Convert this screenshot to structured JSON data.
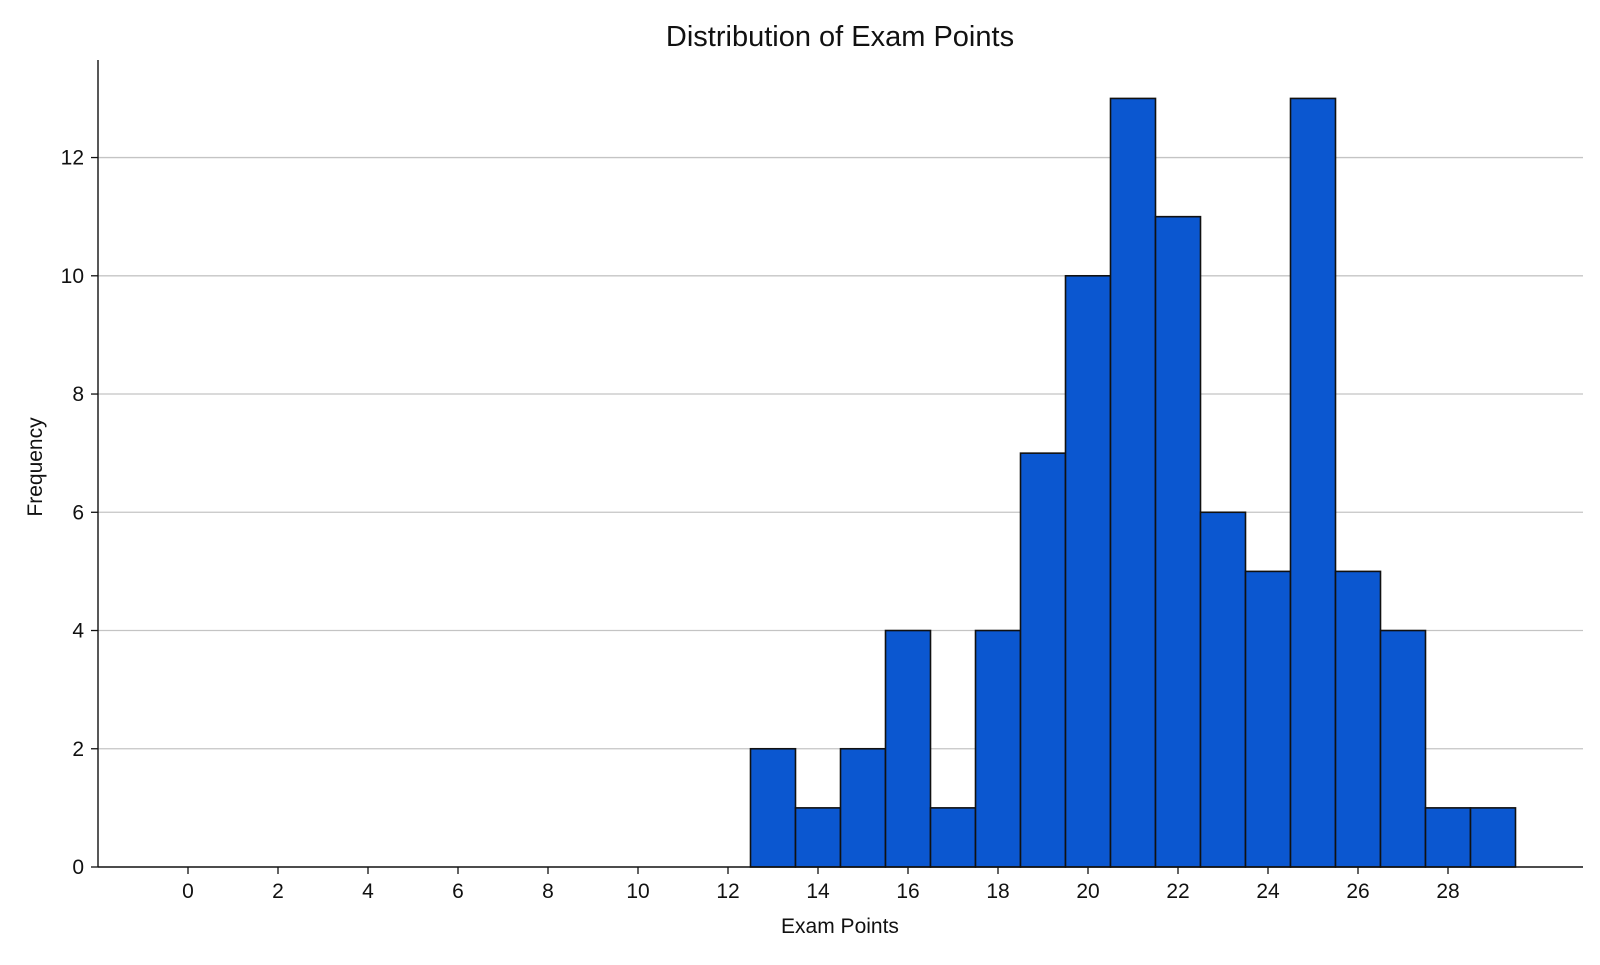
{
  "chart_data": {
    "type": "bar",
    "title": "Distribution of Exam Points",
    "xlabel": "Exam Points",
    "ylabel": "Frequency",
    "xlim": [
      -2,
      31
    ],
    "ylim": [
      0,
      13.65
    ],
    "xticks": [
      0,
      2,
      4,
      6,
      8,
      10,
      12,
      14,
      16,
      18,
      20,
      22,
      24,
      26,
      28
    ],
    "yticks": [
      0,
      2,
      4,
      6,
      8,
      10,
      12
    ],
    "bin_width": 1,
    "bins": [
      {
        "start": 12.5,
        "end": 13.5,
        "count": 2
      },
      {
        "start": 13.5,
        "end": 14.5,
        "count": 1
      },
      {
        "start": 14.5,
        "end": 15.5,
        "count": 2
      },
      {
        "start": 15.5,
        "end": 16.5,
        "count": 4
      },
      {
        "start": 16.5,
        "end": 17.5,
        "count": 1
      },
      {
        "start": 17.5,
        "end": 18.5,
        "count": 4
      },
      {
        "start": 18.5,
        "end": 19.5,
        "count": 7
      },
      {
        "start": 19.5,
        "end": 20.5,
        "count": 10
      },
      {
        "start": 20.5,
        "end": 21.5,
        "count": 13
      },
      {
        "start": 21.5,
        "end": 22.5,
        "count": 11
      },
      {
        "start": 22.5,
        "end": 23.5,
        "count": 6
      },
      {
        "start": 23.5,
        "end": 24.5,
        "count": 5
      },
      {
        "start": 24.5,
        "end": 25.5,
        "count": 13
      },
      {
        "start": 25.5,
        "end": 26.5,
        "count": 5
      },
      {
        "start": 26.5,
        "end": 27.5,
        "count": 4
      },
      {
        "start": 27.5,
        "end": 28.5,
        "count": 1
      },
      {
        "start": 28.5,
        "end": 29.5,
        "count": 1
      }
    ],
    "grid": {
      "y": true,
      "x": false
    },
    "legend": "none",
    "colors": {
      "bar_fill": "#0b57d0",
      "bar_edge": "#111111",
      "grid": "#c4c4c4",
      "axis": "#111111"
    }
  }
}
